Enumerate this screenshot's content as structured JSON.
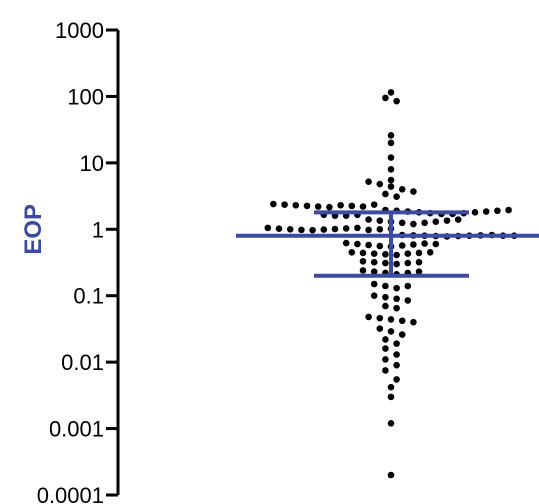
{
  "chart_data": {
    "type": "scatter",
    "plot_style": "dot-plot",
    "ylabel": "EOP",
    "yscale": "log",
    "ylim": [
      0.0001,
      1000
    ],
    "yticks": [
      {
        "value": 1000,
        "label": "1000"
      },
      {
        "value": 100,
        "label": "100"
      },
      {
        "value": 10,
        "label": "10"
      },
      {
        "value": 1,
        "label": "1"
      },
      {
        "value": 0.1,
        "label": "0.1"
      },
      {
        "value": 0.01,
        "label": "0.01"
      },
      {
        "value": 0.001,
        "label": "0.001"
      },
      {
        "value": 0.0001,
        "label": "0.0001"
      }
    ],
    "grid": false,
    "colors": {
      "points": "#000000",
      "summary_lines": "#3a4aa8",
      "ylabel": "#3a4aa8",
      "axis": "#000000"
    },
    "summary": {
      "median": 0.8,
      "upper_quartile": 1.8,
      "lower_quartile": 0.2
    },
    "values": [
      115,
      95,
      85,
      26,
      20,
      12,
      8,
      5.5,
      5.2,
      4.8,
      4.4,
      4.0,
      3.7,
      3.4,
      3.1,
      2.4,
      2.35,
      2.3,
      2.25,
      2.2,
      2.15,
      2.3,
      2.25,
      2.2,
      2.35,
      1.95,
      1.9,
      1.85,
      1.8,
      1.75,
      1.7,
      1.65,
      1.6,
      1.6,
      1.65,
      1.7,
      1.75,
      1.8,
      1.85,
      1.9,
      1.95,
      1.4,
      1.35,
      1.3,
      1.25,
      1.2,
      1.25,
      1.3,
      1.35,
      1.4,
      1.05,
      1.02,
      1.0,
      0.98,
      0.97,
      0.99,
      1.01,
      1.03,
      1.05,
      0.98,
      1.0,
      1.02,
      0.82,
      0.81,
      0.8,
      0.79,
      0.78,
      0.79,
      0.8,
      0.81,
      0.82,
      0.8,
      0.8,
      0.62,
      0.6,
      0.58,
      0.56,
      0.55,
      0.57,
      0.59,
      0.61,
      0.6,
      0.45,
      0.44,
      0.43,
      0.42,
      0.41,
      0.43,
      0.44,
      0.45,
      0.33,
      0.32,
      0.31,
      0.3,
      0.31,
      0.32,
      0.24,
      0.23,
      0.22,
      0.21,
      0.22,
      0.23,
      0.15,
      0.14,
      0.13,
      0.14,
      0.1,
      0.095,
      0.09,
      0.085,
      0.07,
      0.065,
      0.048,
      0.046,
      0.044,
      0.042,
      0.04,
      0.032,
      0.029,
      0.026,
      0.022,
      0.019,
      0.016,
      0.013,
      0.011,
      0.009,
      0.0075,
      0.0055,
      0.0042,
      0.003,
      0.0012,
      0.0002
    ]
  }
}
